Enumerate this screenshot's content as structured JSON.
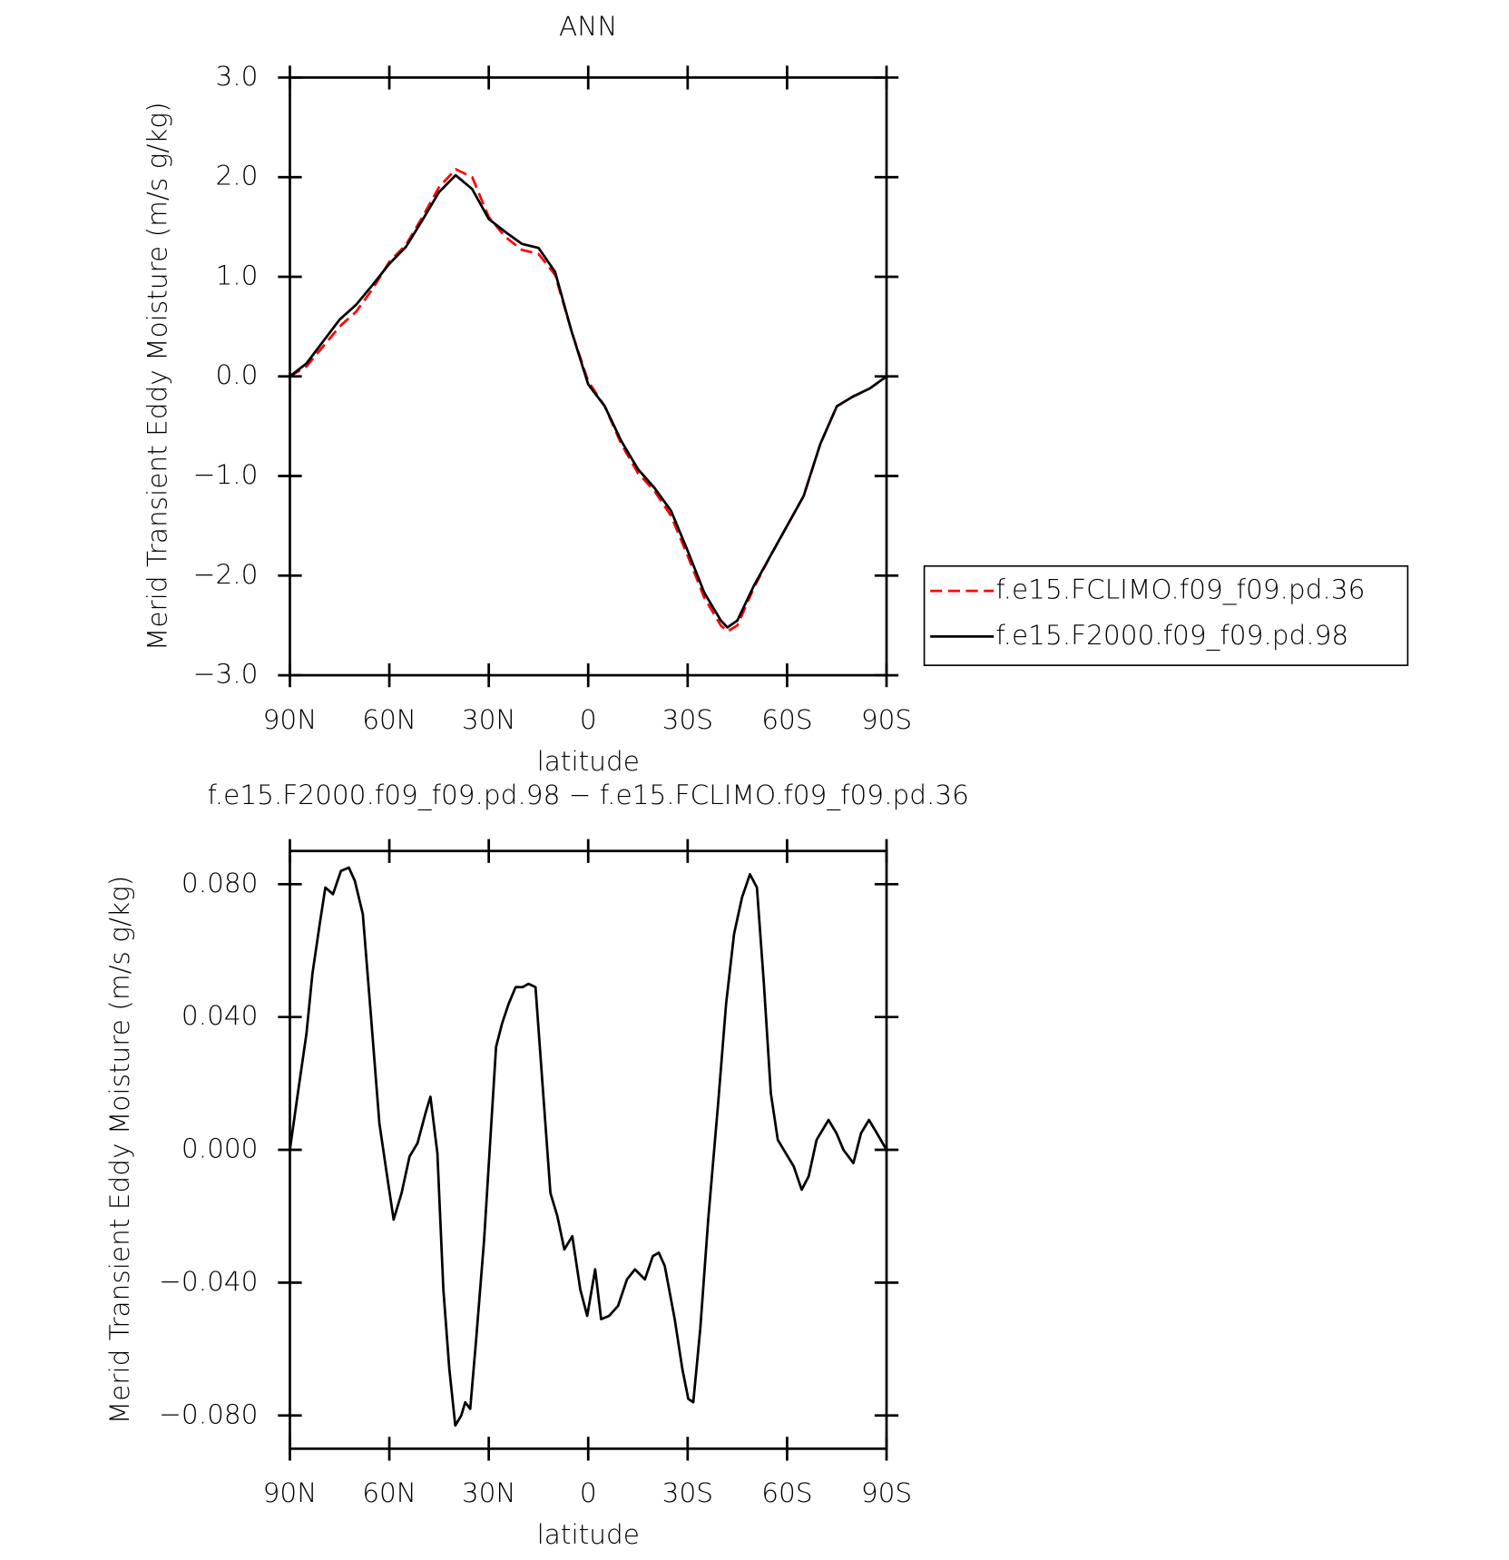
{
  "chart_data": [
    {
      "type": "line",
      "title": "ANN",
      "xlabel": "latitude",
      "ylabel": "Merid Transient Eddy Moisture (m/s g/kg)",
      "x": [
        90,
        85,
        80,
        75,
        70,
        65,
        60,
        55,
        50,
        45,
        40,
        35,
        30,
        25,
        20,
        15,
        10,
        5,
        0,
        -5,
        -10,
        -15,
        -20,
        -25,
        -30,
        -35,
        -40,
        -42,
        -45,
        -50,
        -55,
        -60,
        -65,
        -70,
        -75,
        -80,
        -85,
        -90
      ],
      "series": [
        {
          "name": "f.e15.FCLIMO.f09_f09.pd.36",
          "color": "#ff0000",
          "dash": true,
          "values": [
            0,
            0.1,
            0.3,
            0.5,
            0.65,
            0.88,
            1.15,
            1.32,
            1.6,
            1.9,
            2.08,
            2.0,
            1.6,
            1.4,
            1.27,
            1.23,
            1.02,
            0.45,
            -0.05,
            -0.3,
            -0.68,
            -0.97,
            -1.15,
            -1.4,
            -1.8,
            -2.22,
            -2.5,
            -2.56,
            -2.5,
            -2.12,
            -1.8,
            -1.5,
            -1.2,
            -0.68,
            -0.3,
            -0.2,
            -0.12,
            0
          ]
        },
        {
          "name": "f.e15.F2000.f09_f09.pd.98",
          "color": "#000000",
          "dash": false,
          "values": [
            0,
            0.13,
            0.35,
            0.57,
            0.72,
            0.92,
            1.13,
            1.3,
            1.57,
            1.85,
            2.02,
            1.88,
            1.58,
            1.45,
            1.33,
            1.29,
            1.05,
            0.45,
            -0.08,
            -0.3,
            -0.65,
            -0.93,
            -1.12,
            -1.35,
            -1.75,
            -2.17,
            -2.45,
            -2.52,
            -2.45,
            -2.1,
            -1.8,
            -1.5,
            -1.2,
            -0.68,
            -0.3,
            -0.2,
            -0.12,
            0
          ]
        }
      ],
      "xlim": [
        90,
        -90
      ],
      "xticks": [
        {
          "value": 90,
          "label": "90N"
        },
        {
          "value": 60,
          "label": "60N"
        },
        {
          "value": 30,
          "label": "30N"
        },
        0,
        {
          "value": -30,
          "label": "30S"
        },
        {
          "value": -60,
          "label": "60S"
        },
        {
          "value": -90,
          "label": "90S"
        }
      ],
      "ylim": [
        -3,
        3
      ],
      "yticks": [
        {
          "value": -3,
          "label": "−3.0"
        },
        {
          "value": -2,
          "label": "−2.0"
        },
        {
          "value": -1,
          "label": "−1.0"
        },
        {
          "value": 0,
          "label": "0.0"
        },
        {
          "value": 1,
          "label": "1.0"
        },
        {
          "value": 2,
          "label": "2.0"
        },
        {
          "value": 3,
          "label": "3.0"
        }
      ],
      "legend": "right"
    },
    {
      "type": "line",
      "title": "f.e15.F2000.f09_f09.pd.98 − f.e15.FCLIMO.f09_f09.pd.36",
      "xlabel": "latitude",
      "ylabel": "Merid Transient Eddy Moisture (m/s g/kg)",
      "x": [
        90,
        87.6,
        85,
        83.2,
        81,
        79.3,
        77,
        74.6,
        72.2,
        70.4,
        68,
        65.6,
        63,
        60.8,
        58.7,
        56.3,
        53.9,
        51.5,
        49.1,
        47.6,
        45.5,
        43.7,
        41.9,
        40.1,
        38.3,
        37.1,
        35.6,
        33.8,
        31.4,
        29.6,
        27.8,
        26,
        24,
        21.9,
        19.8,
        18,
        15.9,
        13.8,
        11.4,
        9.3,
        7.2,
        4.8,
        2.4,
        0.3,
        -2.1,
        -3.9,
        -6.3,
        -9,
        -11.7,
        -14.1,
        -17.1,
        -19.5,
        -21.3,
        -23.1,
        -26.1,
        -28.4,
        -30.2,
        -31.7,
        -33.8,
        -36.2,
        -39.2,
        -41.6,
        -44,
        -46.4,
        -48.8,
        -50.9,
        -53,
        -55.1,
        -57.2,
        -59.6,
        -62,
        -64.4,
        -66.5,
        -68.9,
        -72.5,
        -74.9,
        -77,
        -80,
        -82.3,
        -84.7,
        -87.1,
        -90
      ],
      "series": [
        {
          "color": "#000000",
          "dash": false,
          "values": [
            0,
            0.017,
            0.035,
            0.053,
            0.068,
            0.079,
            0.077,
            0.084,
            0.085,
            0.081,
            0.071,
            0.041,
            0.008,
            -0.007,
            -0.021,
            -0.013,
            -0.002,
            0.002,
            0.011,
            0.016,
            -0.001,
            -0.042,
            -0.066,
            -0.083,
            -0.08,
            -0.076,
            -0.078,
            -0.057,
            -0.027,
            0.002,
            0.031,
            0.038,
            0.044,
            0.049,
            0.049,
            0.05,
            0.049,
            0.02,
            -0.013,
            -0.02,
            -0.03,
            -0.026,
            -0.042,
            -0.05,
            -0.036,
            -0.051,
            -0.05,
            -0.047,
            -0.039,
            -0.036,
            -0.039,
            -0.032,
            -0.031,
            -0.035,
            -0.051,
            -0.066,
            -0.075,
            -0.076,
            -0.054,
            -0.021,
            0.014,
            0.044,
            0.065,
            0.076,
            0.083,
            0.079,
            0.05,
            0.017,
            0.003,
            -0.001,
            -0.005,
            -0.012,
            -0.008,
            0.003,
            0.009,
            0.005,
            0,
            -0.004,
            0.005,
            0.009,
            0.005,
            0
          ]
        }
      ],
      "xlim": [
        90,
        -90
      ],
      "xticks": [
        {
          "value": 90,
          "label": "90N"
        },
        {
          "value": 60,
          "label": "60N"
        },
        {
          "value": 30,
          "label": "30N"
        },
        0,
        {
          "value": -30,
          "label": "30S"
        },
        {
          "value": -60,
          "label": "60S"
        },
        {
          "value": -90,
          "label": "90S"
        }
      ],
      "ylim": [
        -0.09,
        0.09
      ],
      "yticks": [
        {
          "value": -0.08,
          "label": "−0.080"
        },
        {
          "value": -0.04,
          "label": "−0.040"
        },
        {
          "value": 0,
          "label": "0.000"
        },
        {
          "value": 0.04,
          "label": "0.040"
        },
        {
          "value": 0.08,
          "label": "0.080"
        }
      ]
    }
  ]
}
